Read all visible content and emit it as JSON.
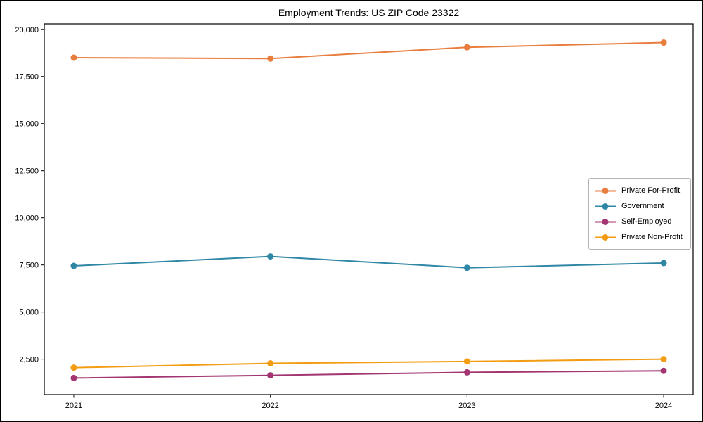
{
  "chart_data": {
    "type": "line",
    "title": "Employment Trends: US ZIP Code 23322",
    "xlabel": "",
    "ylabel": "",
    "categories": [
      2021,
      2022,
      2023,
      2024
    ],
    "xtick_labels": [
      "2021",
      "2022",
      "2023",
      "2024"
    ],
    "series": [
      {
        "name": "Private For-Profit",
        "color": "#E87D3E",
        "values": [
          18500,
          18450,
          19050,
          19300
        ]
      },
      {
        "name": "Government",
        "color": "#2F87A6",
        "values": [
          7450,
          7950,
          7350,
          7600
        ]
      },
      {
        "name": "Self-Employed",
        "color": "#A23572",
        "values": [
          1500,
          1640,
          1800,
          1880
        ]
      },
      {
        "name": "Private Non-Profit",
        "color": "#F39C12",
        "values": [
          2050,
          2280,
          2380,
          2500
        ]
      }
    ],
    "yticks": [
      2500,
      5000,
      7500,
      10000,
      12500,
      15000,
      17500,
      20000
    ],
    "ytick_labels": [
      "2,500",
      "5,000",
      "7,500",
      "10,000",
      "12,500",
      "15,000",
      "17,500",
      "20,000"
    ],
    "ylim": [
      620,
      20290
    ],
    "xlim": [
      2020.85,
      2024.15
    ],
    "grid": false,
    "legend_position": "center-right",
    "marker": "circle",
    "line_width": 2,
    "marker_radius": 4.5,
    "axis_color": "#000000",
    "background": "#ffffff"
  }
}
